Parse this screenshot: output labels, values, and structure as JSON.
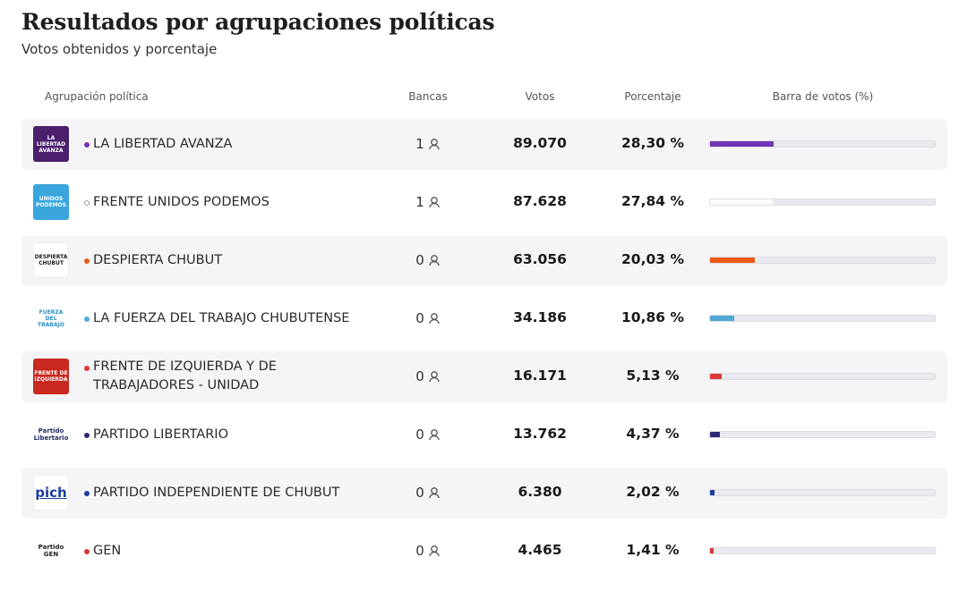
{
  "chart_data": {
    "type": "table",
    "title": "Resultados por agrupaciones políticas",
    "subtitle": "Votos obtenidos y porcentaje",
    "columns": [
      "Agrupación política",
      "Bancas",
      "Votos",
      "Porcentaje",
      "Barra de votos (%)"
    ],
    "bar_max_percent": 100,
    "rows": [
      {
        "party": "LA LIBERTAD AVANZA",
        "seats": "1",
        "votes": "89.070",
        "percent_label": "28,30 %",
        "percent": 28.3,
        "color": "#6f35b5",
        "logo": "la-libertad-avanza-logo",
        "logo_text": "LA LIBERTAD AVANZA"
      },
      {
        "party": "FRENTE UNIDOS PODEMOS",
        "seats": "1",
        "votes": "87.628",
        "percent_label": "27,84 %",
        "percent": 27.84,
        "color": "#ffffff",
        "logo": "frente-unidos-podemos-logo",
        "logo_text": "UNIDOS PODEMOS"
      },
      {
        "party": "DESPIERTA CHUBUT",
        "seats": "0",
        "votes": "63.056",
        "percent_label": "20,03 %",
        "percent": 20.03,
        "color": "#ea5a12",
        "logo": "despierta-chubut-logo",
        "logo_text": "DESPIERTA CHUBUT"
      },
      {
        "party": "LA FUERZA DEL TRABAJO CHUBUTENSE",
        "seats": "0",
        "votes": "34.186",
        "percent_label": "10,86 %",
        "percent": 10.86,
        "color": "#53a9d6",
        "logo": "la-fuerza-del-trabajo-logo",
        "logo_text": "FUERZA DEL TRABAJO"
      },
      {
        "party": "FRENTE DE IZQUIERDA Y DE TRABAJADORES - UNIDAD",
        "seats": "0",
        "votes": "16.171",
        "percent_label": "5,13 %",
        "percent": 5.13,
        "color": "#df3838",
        "logo": "frente-de-izquierda-logo",
        "logo_text": "FRENTE DE IZQUIERDA"
      },
      {
        "party": "PARTIDO LIBERTARIO",
        "seats": "0",
        "votes": "13.762",
        "percent_label": "4,37 %",
        "percent": 4.37,
        "color": "#2e2a72",
        "logo": "partido-libertario-logo",
        "logo_text": "Partido Libertario"
      },
      {
        "party": "PARTIDO INDEPENDIENTE DE CHUBUT",
        "seats": "0",
        "votes": "6.380",
        "percent_label": "2,02 %",
        "percent": 2.02,
        "color": "#1e3d9a",
        "logo": "pich-logo",
        "logo_text": "pich"
      },
      {
        "party": "GEN",
        "seats": "0",
        "votes": "4.465",
        "percent_label": "1,41 %",
        "percent": 1.41,
        "color": "#d63535",
        "logo": "partido-gen-logo",
        "logo_text": "Partido GEN"
      }
    ]
  },
  "icons": {
    "seats": "person-icon"
  }
}
